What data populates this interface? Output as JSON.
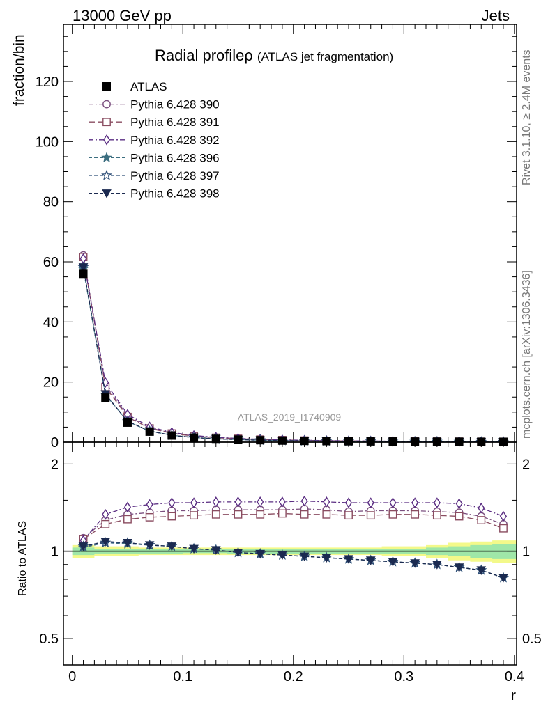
{
  "header": {
    "left": "13000 GeV pp",
    "right": "Jets"
  },
  "side_labels": {
    "top": "Rivet 3.1.10, ≥ 2.4M events",
    "bottom": "mcplots.cern.ch [arXiv:1306.3436]"
  },
  "chart_data": {
    "type": "line",
    "title": "Radial profile",
    "title_symbol": "ρ",
    "title_paren": "(ATLAS jet fragmentation)",
    "analysis_label": "ATLAS_2019_I1740909",
    "xlabel": "r",
    "ylabel_main": "fraction/bin",
    "ylabel_ratio": "Ratio to ATLAS",
    "xlim": [
      -0.008,
      0.402
    ],
    "ylim_main": [
      0,
      139
    ],
    "ylim_ratio": [
      0.405,
      2.38
    ],
    "ratio_log_scale": true,
    "x_ticks": [
      0,
      0.1,
      0.2,
      0.3,
      0.4
    ],
    "x_tick_labels": [
      "0",
      "0.1",
      "0.2",
      "0.3",
      "0.4"
    ],
    "y_ticks_main": [
      0,
      20,
      40,
      60,
      80,
      100,
      120
    ],
    "y_tick_labels_main": [
      "0",
      "20",
      "40",
      "60",
      "80",
      "100",
      "120"
    ],
    "y_ticks_ratio": [
      0.5,
      1,
      2
    ],
    "y_tick_labels_ratio": [
      "0.5",
      "1",
      "2"
    ],
    "legend_position": "top-left",
    "x": [
      0.01,
      0.03,
      0.05,
      0.07,
      0.09,
      0.11,
      0.13,
      0.15,
      0.17,
      0.19,
      0.21,
      0.23,
      0.25,
      0.27,
      0.29,
      0.31,
      0.33,
      0.35,
      0.37,
      0.39
    ],
    "data": {
      "name": "ATLAS",
      "values": [
        56,
        14.8,
        6.5,
        3.5,
        2.2,
        1.5,
        1.1,
        0.85,
        0.65,
        0.52,
        0.42,
        0.35,
        0.3,
        0.26,
        0.22,
        0.19,
        0.17,
        0.15,
        0.13,
        0.12
      ],
      "band_inner": [
        0.03,
        0.02,
        0.02,
        0.02,
        0.02,
        0.015,
        0.015,
        0.02,
        0.02,
        0.02,
        0.02,
        0.02,
        0.02,
        0.02,
        0.02,
        0.02,
        0.03,
        0.04,
        0.05,
        0.06
      ],
      "band_outer": [
        0.05,
        0.04,
        0.04,
        0.03,
        0.03,
        0.03,
        0.03,
        0.03,
        0.03,
        0.03,
        0.03,
        0.03,
        0.03,
        0.03,
        0.04,
        0.04,
        0.05,
        0.07,
        0.08,
        0.09
      ]
    },
    "series": [
      {
        "name": "Pythia 6.428 390",
        "color": "#7b4f7f",
        "marker": "circle",
        "dash": "7,3,2,3",
        "ratio": [
          1.11,
          1.28,
          1.34,
          1.36,
          1.38,
          1.38,
          1.39,
          1.39,
          1.39,
          1.39,
          1.4,
          1.39,
          1.37,
          1.38,
          1.38,
          1.38,
          1.37,
          1.36,
          1.32,
          1.24
        ]
      },
      {
        "name": "Pythia 6.428 391",
        "color": "#8a4c60",
        "marker": "square",
        "dash": "9,4",
        "ratio": [
          1.1,
          1.24,
          1.29,
          1.31,
          1.32,
          1.33,
          1.34,
          1.34,
          1.34,
          1.35,
          1.34,
          1.34,
          1.33,
          1.33,
          1.34,
          1.34,
          1.33,
          1.32,
          1.28,
          1.2
        ]
      },
      {
        "name": "Pythia 6.428 392",
        "color": "#5a2d82",
        "marker": "diamond",
        "dash": "7,3,2,3",
        "ratio": [
          1.09,
          1.34,
          1.42,
          1.45,
          1.47,
          1.47,
          1.48,
          1.48,
          1.48,
          1.48,
          1.49,
          1.48,
          1.47,
          1.47,
          1.47,
          1.47,
          1.47,
          1.46,
          1.41,
          1.32
        ]
      },
      {
        "name": "Pythia 6.428 396",
        "color": "#3c6e80",
        "marker": "star",
        "dash": "5,3",
        "ratio": [
          1.03,
          1.07,
          1.06,
          1.05,
          1.04,
          1.02,
          1.01,
          0.99,
          0.98,
          0.97,
          0.96,
          0.95,
          0.94,
          0.93,
          0.92,
          0.91,
          0.9,
          0.88,
          0.86,
          0.81
        ]
      },
      {
        "name": "Pythia 6.428 397",
        "color": "#2f4f78",
        "marker": "star-open",
        "dash": "5,3",
        "ratio": [
          1.04,
          1.07,
          1.07,
          1.05,
          1.04,
          1.02,
          1.01,
          0.99,
          0.98,
          0.97,
          0.96,
          0.95,
          0.94,
          0.93,
          0.92,
          0.91,
          0.9,
          0.88,
          0.86,
          0.81
        ]
      },
      {
        "name": "Pythia 6.428 398",
        "color": "#1b2a50",
        "marker": "triangle-down",
        "dash": "5,3",
        "ratio": [
          1.04,
          1.08,
          1.07,
          1.05,
          1.04,
          1.02,
          1.01,
          0.99,
          0.98,
          0.97,
          0.96,
          0.95,
          0.94,
          0.93,
          0.92,
          0.91,
          0.9,
          0.88,
          0.86,
          0.81
        ]
      }
    ]
  }
}
